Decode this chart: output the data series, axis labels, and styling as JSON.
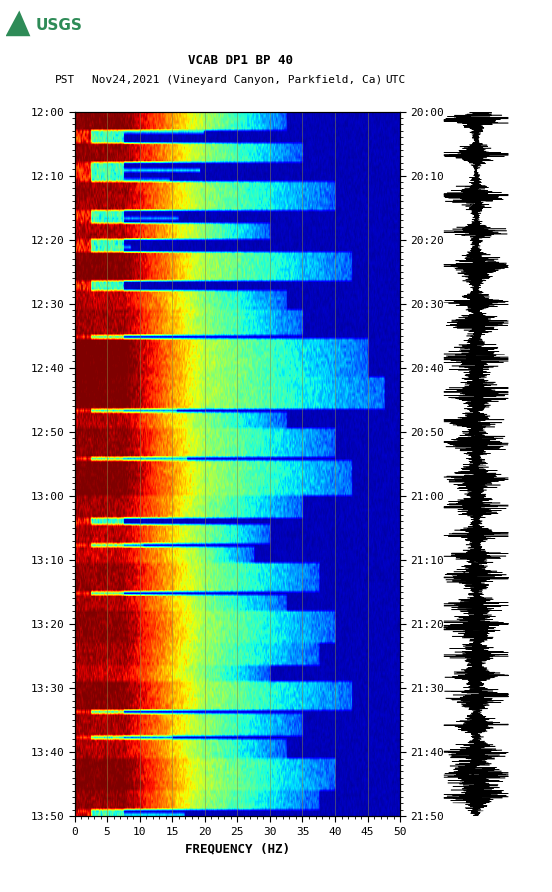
{
  "title_line1": "VCAB DP1 BP 40",
  "title_line2_pst": "PST",
  "title_line2_mid": "Nov24,2021 (Vineyard Canyon, Parkfield, Ca)",
  "title_line2_utc": "UTC",
  "xlabel": "FREQUENCY (HZ)",
  "freq_min": 0,
  "freq_max": 50,
  "freq_ticks": [
    0,
    5,
    10,
    15,
    20,
    25,
    30,
    35,
    40,
    45,
    50
  ],
  "pst_ticks": [
    "12:00",
    "12:10",
    "12:20",
    "12:30",
    "12:40",
    "12:50",
    "13:00",
    "13:10",
    "13:20",
    "13:30",
    "13:40",
    "13:50"
  ],
  "utc_ticks": [
    "20:00",
    "20:10",
    "20:20",
    "20:30",
    "20:40",
    "20:50",
    "21:00",
    "21:10",
    "21:20",
    "21:30",
    "21:40",
    "21:50"
  ],
  "n_time": 220,
  "n_freq": 500,
  "colormap": "jet",
  "vertical_lines_freq": [
    5,
    10,
    15,
    20,
    25,
    30,
    35,
    40,
    45
  ],
  "vertical_line_color": "#888844",
  "vertical_line_alpha": 0.5,
  "background_color": "#ffffff"
}
